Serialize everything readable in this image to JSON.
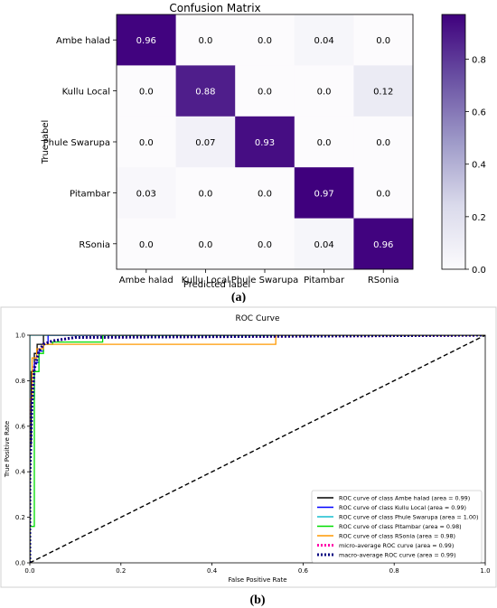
{
  "figure": {
    "caption_a": "(a)",
    "caption_b": "(b)"
  },
  "chart_data": [
    {
      "type": "heatmap",
      "title": "Confusion Matrix",
      "xlabel": "Predicted label",
      "ylabel": "True label",
      "categories": [
        "Ambe halad",
        "Kullu Local",
        "Phule Swarupa",
        "Pitambar",
        "RSonia"
      ],
      "matrix": [
        [
          0.96,
          0.0,
          0.0,
          0.04,
          0.0
        ],
        [
          0.0,
          0.88,
          0.0,
          0.0,
          0.12
        ],
        [
          0.0,
          0.07,
          0.93,
          0.0,
          0.0
        ],
        [
          0.03,
          0.0,
          0.0,
          0.97,
          0.0
        ],
        [
          0.0,
          0.0,
          0.0,
          0.04,
          0.96
        ]
      ],
      "cell_labels": [
        [
          "0.96",
          "0.0",
          "0.0",
          "0.04",
          "0.0"
        ],
        [
          "0.0",
          "0.88",
          "0.0",
          "0.0",
          "0.12"
        ],
        [
          "0.0",
          "0.07",
          "0.93",
          "0.0",
          "0.0"
        ],
        [
          "0.03",
          "0.0",
          "0.0",
          "0.97",
          "0.0"
        ],
        [
          "0.0",
          "0.0",
          "0.0",
          "0.04",
          "0.96"
        ]
      ],
      "colorbar": {
        "range": [
          0,
          0.97
        ],
        "ticks": [
          0.0,
          0.2,
          0.4,
          0.6,
          0.8
        ],
        "tick_labels": [
          "0.0",
          "0.2",
          "0.4",
          "0.6",
          "0.8"
        ],
        "colormap": "Purples",
        "color_low": "#fcfbfd",
        "color_high": "#3f007d"
      }
    },
    {
      "type": "line",
      "title": "ROC Curve",
      "xlabel": "False Positive Rate",
      "ylabel": "True Positive Rate",
      "xlim": [
        0,
        1.0
      ],
      "ylim": [
        0,
        1.0
      ],
      "x_ticks": [
        0.0,
        0.2,
        0.4,
        0.6,
        0.8,
        1.0
      ],
      "x_tick_labels": [
        "0.0",
        "0.2",
        "0.4",
        "0.6",
        "0.8",
        "1.0"
      ],
      "y_ticks": [
        0.0,
        0.2,
        0.4,
        0.6,
        0.8,
        1.0
      ],
      "y_tick_labels": [
        "0.0",
        "0.2",
        "0.4",
        "0.6",
        "0.8",
        "1.0"
      ],
      "grid": false,
      "legend_position": "lower-right",
      "series": [
        {
          "name": "ROC curve of class Ambe halad (area = 0.99)",
          "color": "#000000",
          "dash": "solid",
          "x": [
            0,
            0,
            0.003,
            0.003,
            0.01,
            0.01,
            0.016,
            0.016,
            0.03,
            0.03,
            1.0
          ],
          "y": [
            0,
            0.52,
            0.52,
            0.84,
            0.84,
            0.92,
            0.92,
            0.96,
            0.96,
            1.0,
            1.0
          ]
        },
        {
          "name": "ROC curve of class Kullu Local (area = 0.99)",
          "color": "#0000ff",
          "dash": "solid",
          "x": [
            0,
            0,
            0.01,
            0.01,
            0.02,
            0.02,
            0.03,
            0.03,
            0.04,
            0.04,
            1.0
          ],
          "y": [
            0,
            0.72,
            0.72,
            0.88,
            0.88,
            0.93,
            0.93,
            0.96,
            0.96,
            1.0,
            1.0
          ]
        },
        {
          "name": "ROC curve of class Phule Swarupa (area = 1.00)",
          "color": "#17becf",
          "dash": "solid",
          "x": [
            0,
            0,
            1.0
          ],
          "y": [
            0,
            1.0,
            1.0
          ]
        },
        {
          "name": "ROC curve of class Pitambar (area = 0.98)",
          "color": "#00dd00",
          "dash": "solid",
          "x": [
            0,
            0,
            0.01,
            0.01,
            0.02,
            0.02,
            0.03,
            0.03,
            0.05,
            0.05,
            0.16,
            0.16,
            1.0
          ],
          "y": [
            0,
            0.16,
            0.16,
            0.84,
            0.84,
            0.92,
            0.92,
            0.96,
            0.96,
            0.97,
            0.97,
            1.0,
            1.0
          ]
        },
        {
          "name": "ROC curve of class RSonia (area = 0.98)",
          "color": "#ff9900",
          "dash": "solid",
          "x": [
            0,
            0,
            0.005,
            0.005,
            0.015,
            0.015,
            0.03,
            0.03,
            0.54,
            0.54,
            1.0
          ],
          "y": [
            0,
            0.72,
            0.72,
            0.9,
            0.9,
            0.94,
            0.94,
            0.96,
            0.96,
            1.0,
            1.0
          ]
        },
        {
          "name": "micro-average ROC curve (area = 0.99)",
          "color": "#ff00aa",
          "dash": "dotted",
          "x": [
            0,
            0,
            0.005,
            0.01,
            0.02,
            0.03,
            0.05,
            0.1,
            1.0
          ],
          "y": [
            0,
            0.4,
            0.72,
            0.86,
            0.93,
            0.96,
            0.975,
            0.99,
            1.0
          ]
        },
        {
          "name": "macro-average ROC curve (area = 0.99)",
          "color": "#000080",
          "dash": "dotted",
          "x": [
            0,
            0,
            0.005,
            0.01,
            0.02,
            0.03,
            0.05,
            0.1,
            1.0
          ],
          "y": [
            0,
            0.38,
            0.7,
            0.85,
            0.93,
            0.96,
            0.975,
            0.99,
            1.0
          ]
        },
        {
          "name": "",
          "color": "#000000",
          "dash": "dashed",
          "x": [
            0,
            1
          ],
          "y": [
            0,
            1
          ]
        }
      ]
    }
  ]
}
